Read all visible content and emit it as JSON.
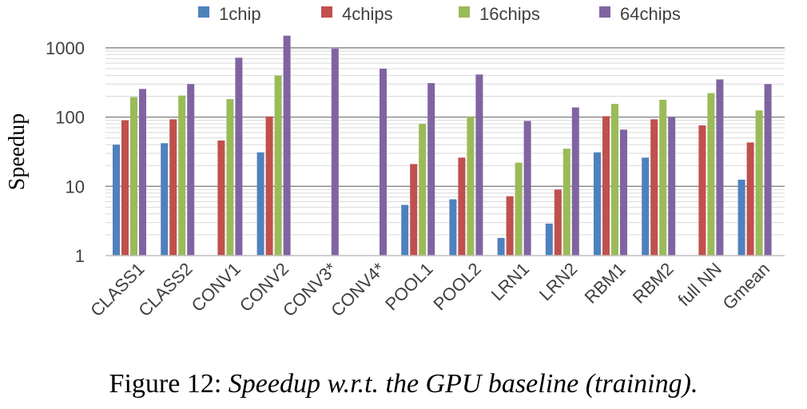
{
  "chart_data": {
    "type": "bar",
    "scale": "log",
    "ylabel": "Speedup",
    "ylim": [
      1,
      1500
    ],
    "yticks": [
      "1",
      "10",
      "100",
      "1000"
    ],
    "ytick_values": [
      1,
      10,
      100,
      1000
    ],
    "grid": true,
    "legend_position": "top",
    "categories": [
      "CLASS1",
      "CLASS2",
      "CONV1",
      "CONV2",
      "CONV3*",
      "CONV4*",
      "POOL1",
      "POOL2",
      "LRN1",
      "LRN2",
      "RBM1",
      "RBM2",
      "full NN",
      "Gmean"
    ],
    "series": [
      {
        "name": "1chip",
        "color": "#4F81BD",
        "values": [
          40,
          42,
          null,
          31,
          null,
          null,
          5.4,
          6.5,
          1.8,
          2.9,
          31,
          26,
          null,
          12.5
        ]
      },
      {
        "name": "4chips",
        "color": "#C0504D",
        "values": [
          90,
          93,
          46,
          102,
          null,
          null,
          21,
          26,
          7.2,
          9,
          103,
          93,
          76,
          43
        ]
      },
      {
        "name": "16chips",
        "color": "#9BBB59",
        "values": [
          195,
          205,
          182,
          398,
          null,
          null,
          80,
          102,
          22,
          35,
          155,
          178,
          222,
          125
        ]
      },
      {
        "name": "64chips",
        "color": "#8064A2",
        "values": [
          255,
          300,
          720,
          1500,
          975,
          500,
          310,
          412,
          88,
          138,
          66,
          100,
          350,
          300
        ]
      }
    ]
  },
  "caption": {
    "figure_label": "Figure 12:",
    "description": "Speedup w.r.t. the GPU baseline (training)."
  }
}
